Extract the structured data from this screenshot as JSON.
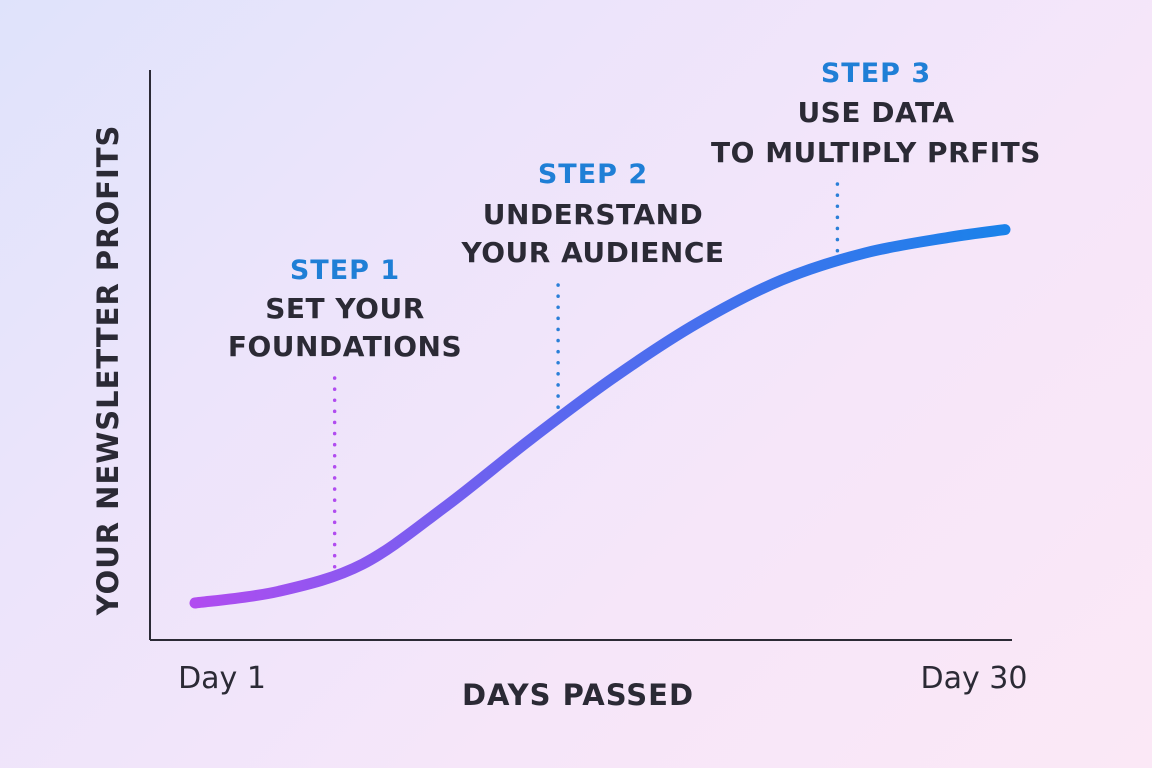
{
  "chart_data": {
    "type": "line",
    "xlabel": "DAYS PASSED",
    "ylabel": "YOUR NEWSLETTER PROFITS",
    "x_tick_labels": [
      "Day 1",
      "Day 30"
    ],
    "xlim": [
      1,
      30
    ],
    "ylim": [
      0,
      100
    ],
    "grid": false,
    "series": [
      {
        "x": [
          1,
          4,
          7,
          10,
          13,
          16,
          19,
          22,
          25,
          28,
          30
        ],
        "y": [
          0,
          3,
          10,
          25,
          42,
          58,
          72,
          83,
          90,
          94,
          96
        ]
      }
    ],
    "annotations": [
      {
        "step": "STEP 1",
        "lines": [
          "SET YOUR",
          "FOUNDATIONS"
        ],
        "x": 6
      },
      {
        "step": "STEP 2",
        "lines": [
          "UNDERSTAND",
          "YOUR AUDIENCE"
        ],
        "x": 14
      },
      {
        "step": "STEP 3",
        "lines": [
          "USE DATA",
          "TO MULTIPLY PRFITS"
        ],
        "x": 24
      }
    ],
    "colors": {
      "curve_start": "#b14cf0",
      "curve_mid": "#5a67ef",
      "curve_end": "#1a82ea",
      "step_label": "#1f7fd6",
      "step1_guide": "#b14cf0",
      "step_guide": "#2a7fd8",
      "text": "#2b2a35",
      "axis": "#2b2a35"
    }
  }
}
